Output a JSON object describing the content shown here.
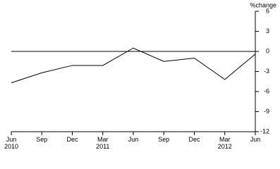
{
  "chart_data": {
    "type": "line",
    "y_label": "%change",
    "categories": [
      "Jun 2010",
      "Sep",
      "Dec",
      "Mar 2011",
      "Jun",
      "Sep",
      "Dec",
      "Mar 2012",
      "Jun"
    ],
    "series": [
      {
        "color": "#000000",
        "values": [
          -4.7,
          -3.2,
          -2.1,
          -2.1,
          0.5,
          -1.5,
          -1.0,
          -4.2,
          -0.4
        ]
      }
    ],
    "ylim": [
      -12,
      6
    ],
    "yticks": [
      6,
      3,
      0,
      -3,
      -6,
      -9,
      -12
    ],
    "zero_line": true
  }
}
